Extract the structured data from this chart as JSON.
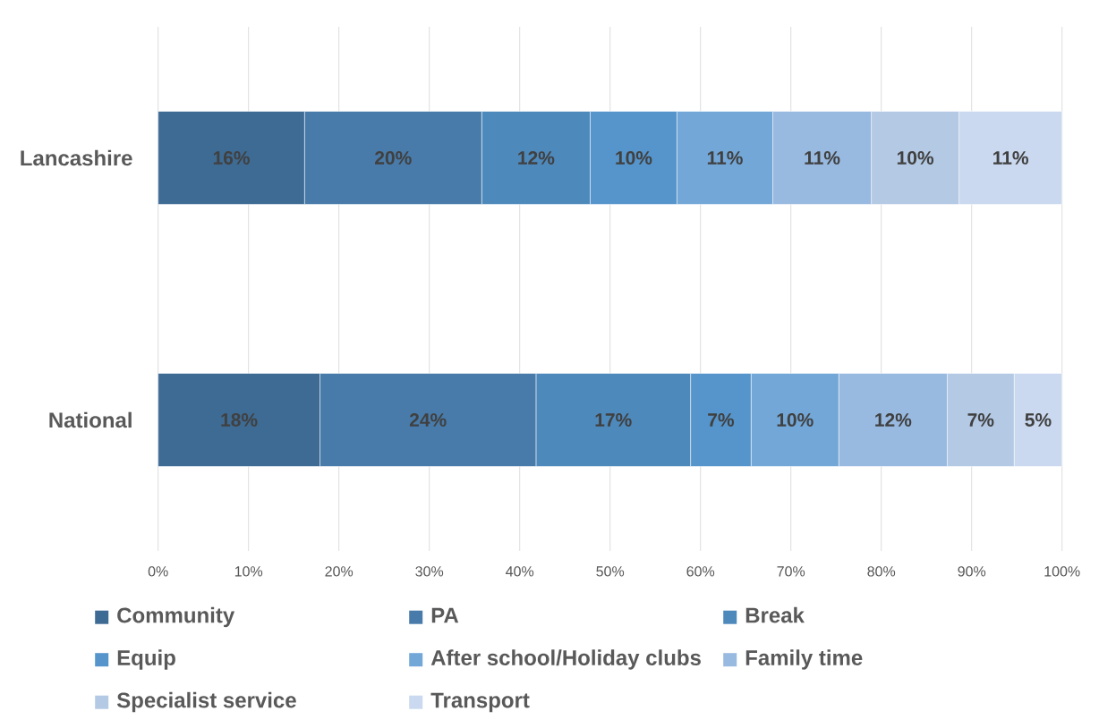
{
  "chart_data": {
    "type": "bar",
    "orientation": "horizontal",
    "stacked": true,
    "categories": [
      "Lancashire",
      "National"
    ],
    "series": [
      {
        "name": "Community",
        "color": "#3e6b94",
        "values": [
          16.2,
          17.9
        ],
        "value_labels": [
          "16%",
          "18%"
        ]
      },
      {
        "name": "PA",
        "color": "#487baa",
        "values": [
          19.6,
          23.9
        ],
        "value_labels": [
          "20%",
          "24%"
        ]
      },
      {
        "name": "Break",
        "color": "#4e89bc",
        "values": [
          12.0,
          17.1
        ],
        "value_labels": [
          "12%",
          "17%"
        ]
      },
      {
        "name": "Equip",
        "color": "#5695cb",
        "values": [
          9.6,
          6.7
        ],
        "value_labels": [
          "10%",
          "7%"
        ]
      },
      {
        "name": "After school/Holiday clubs",
        "color": "#73a7d8",
        "values": [
          10.6,
          9.7
        ],
        "value_labels": [
          "11%",
          "10%"
        ]
      },
      {
        "name": "Family time",
        "color": "#98b9e0",
        "values": [
          10.9,
          12.0
        ],
        "value_labels": [
          "11%",
          "12%"
        ]
      },
      {
        "name": "Specialist service",
        "color": "#b3c9e4",
        "values": [
          9.7,
          7.4
        ],
        "value_labels": [
          "10%",
          "7%"
        ]
      },
      {
        "name": "Transport",
        "color": "#cad9ef",
        "values": [
          11.4,
          5.3
        ],
        "value_labels": [
          "11%",
          "5%"
        ]
      }
    ],
    "xlim": [
      0,
      100
    ],
    "xticks": [
      {
        "value": 0,
        "label": "0%"
      },
      {
        "value": 10,
        "label": "10%"
      },
      {
        "value": 20,
        "label": "20%"
      },
      {
        "value": 30,
        "label": "30%"
      },
      {
        "value": 40,
        "label": "40%"
      },
      {
        "value": 50,
        "label": "50%"
      },
      {
        "value": 60,
        "label": "60%"
      },
      {
        "value": 70,
        "label": "70%"
      },
      {
        "value": 80,
        "label": "80%"
      },
      {
        "value": 90,
        "label": "90%"
      },
      {
        "value": 100,
        "label": "100%"
      }
    ],
    "grid": "x",
    "legend": "bottom"
  }
}
